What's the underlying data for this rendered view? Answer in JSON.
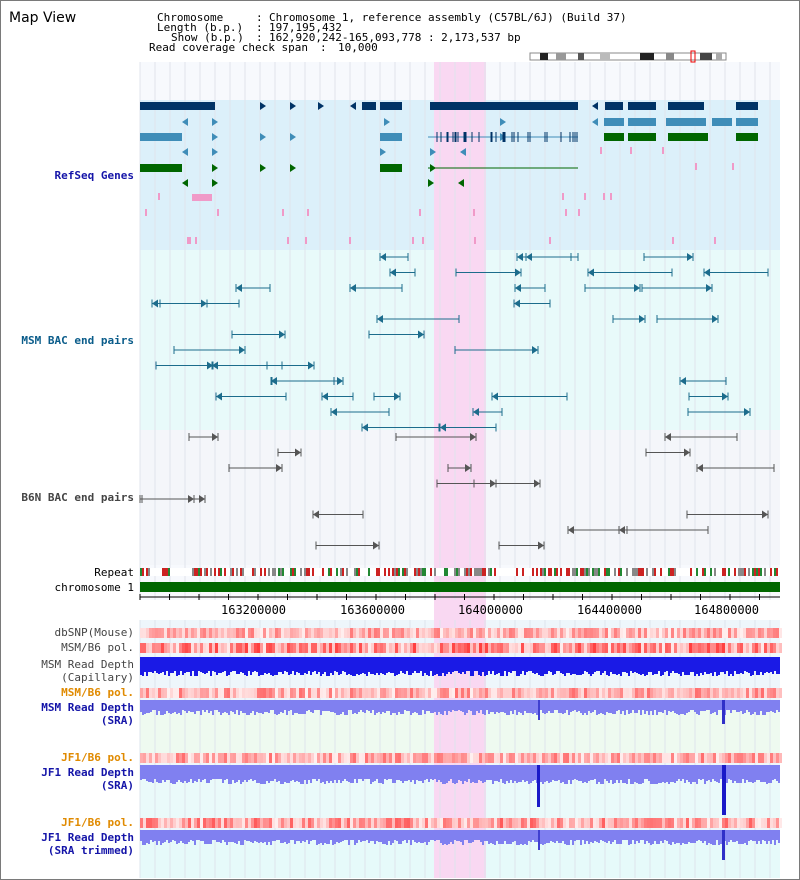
{
  "page": {
    "title": "Map View"
  },
  "header": {
    "chromosome_key": "Chromosome",
    "chromosome_value": "Chromosome 1, reference assembly (C57BL/6J) (Build 37)",
    "length_key": "Length (b.p.)",
    "length_value": "197,195,432",
    "show_key": "Show (b.p.)",
    "show_value": "162,920,242-165,093,778 : 2,173,537 bp",
    "coverage_key": "Read coverage check span",
    "coverage_value": "10,000"
  },
  "tracks": {
    "refseq": "RefSeq Genes",
    "msm_bac": "MSM BAC end pairs",
    "b6n_bac": "B6N BAC end pairs",
    "repeat": "Repeat",
    "chromosome": "chromosome 1",
    "dbsnp": "dbSNP(Mouse)",
    "msm_b6_pol_1": "MSM/B6 pol.",
    "msm_depth_cap_1": "MSM Read Depth",
    "msm_depth_cap_2": "(Capillary)",
    "msm_b6_pol_2": "MSM/B6 pol.",
    "msm_depth_sra_1": "MSM Read Depth",
    "msm_depth_sra_2": "(SRA)",
    "jf1_b6_pol_1": "JF1/B6 pol.",
    "jf1_depth_sra_1": "JF1 Read Depth",
    "jf1_depth_sra_2": "(SRA)",
    "jf1_b6_pol_2": "JF1/B6 pol.",
    "jf1_depth_trim_1": "JF1 Read Depth",
    "jf1_depth_trim_2": "(SRA trimmed)"
  },
  "axis": {
    "ticks": [
      "163200000",
      "163600000",
      "164000000",
      "164400000",
      "164800000"
    ]
  },
  "colors": {
    "refseq_bg": "#dcf0fa",
    "bac_bg": "#e8fafa",
    "highlight": "#f9d8f2",
    "navy": "#003366",
    "steel": "#3f8db8",
    "green": "#006600",
    "pink": "#f09ac8",
    "chrom_green": "#006600",
    "depth_blue": "#1a1ae6",
    "depth_light": "#8080f0"
  }
}
